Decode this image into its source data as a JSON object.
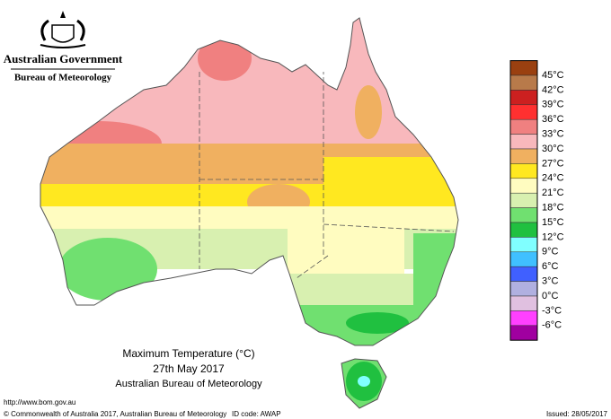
{
  "header": {
    "government": "Australian Government",
    "bureau": "Bureau of Meteorology"
  },
  "map": {
    "title": "Maximum Temperature (°C)",
    "date": "27th May 2017",
    "source": "Australian Bureau of Meteorology"
  },
  "legend": {
    "labels": [
      "45°C",
      "42°C",
      "39°C",
      "36°C",
      "33°C",
      "30°C",
      "27°C",
      "24°C",
      "21°C",
      "18°C",
      "15°C",
      "12°C",
      "9°C",
      "6°C",
      "3°C",
      "0°C",
      "-3°C",
      "-6°C"
    ],
    "colors": [
      "#9a4010",
      "#b87a4a",
      "#cc2020",
      "#ff3030",
      "#f08080",
      "#f8b8bc",
      "#f0b060",
      "#ffe820",
      "#fffcc0",
      "#d8f0b0",
      "#70e070",
      "#20c040",
      "#80ffff",
      "#40c0ff",
      "#4060ff",
      "#b0b0e0",
      "#e0c0e0",
      "#ff40ff",
      "#a000a0"
    ]
  },
  "footer": {
    "url": "http://www.bom.gov.au",
    "copyright": "© Commonwealth of Australia 2017, Australian Bureau of Meteorology",
    "id_code": "ID code: AWAP",
    "issued": "Issued: 28/05/2017"
  }
}
